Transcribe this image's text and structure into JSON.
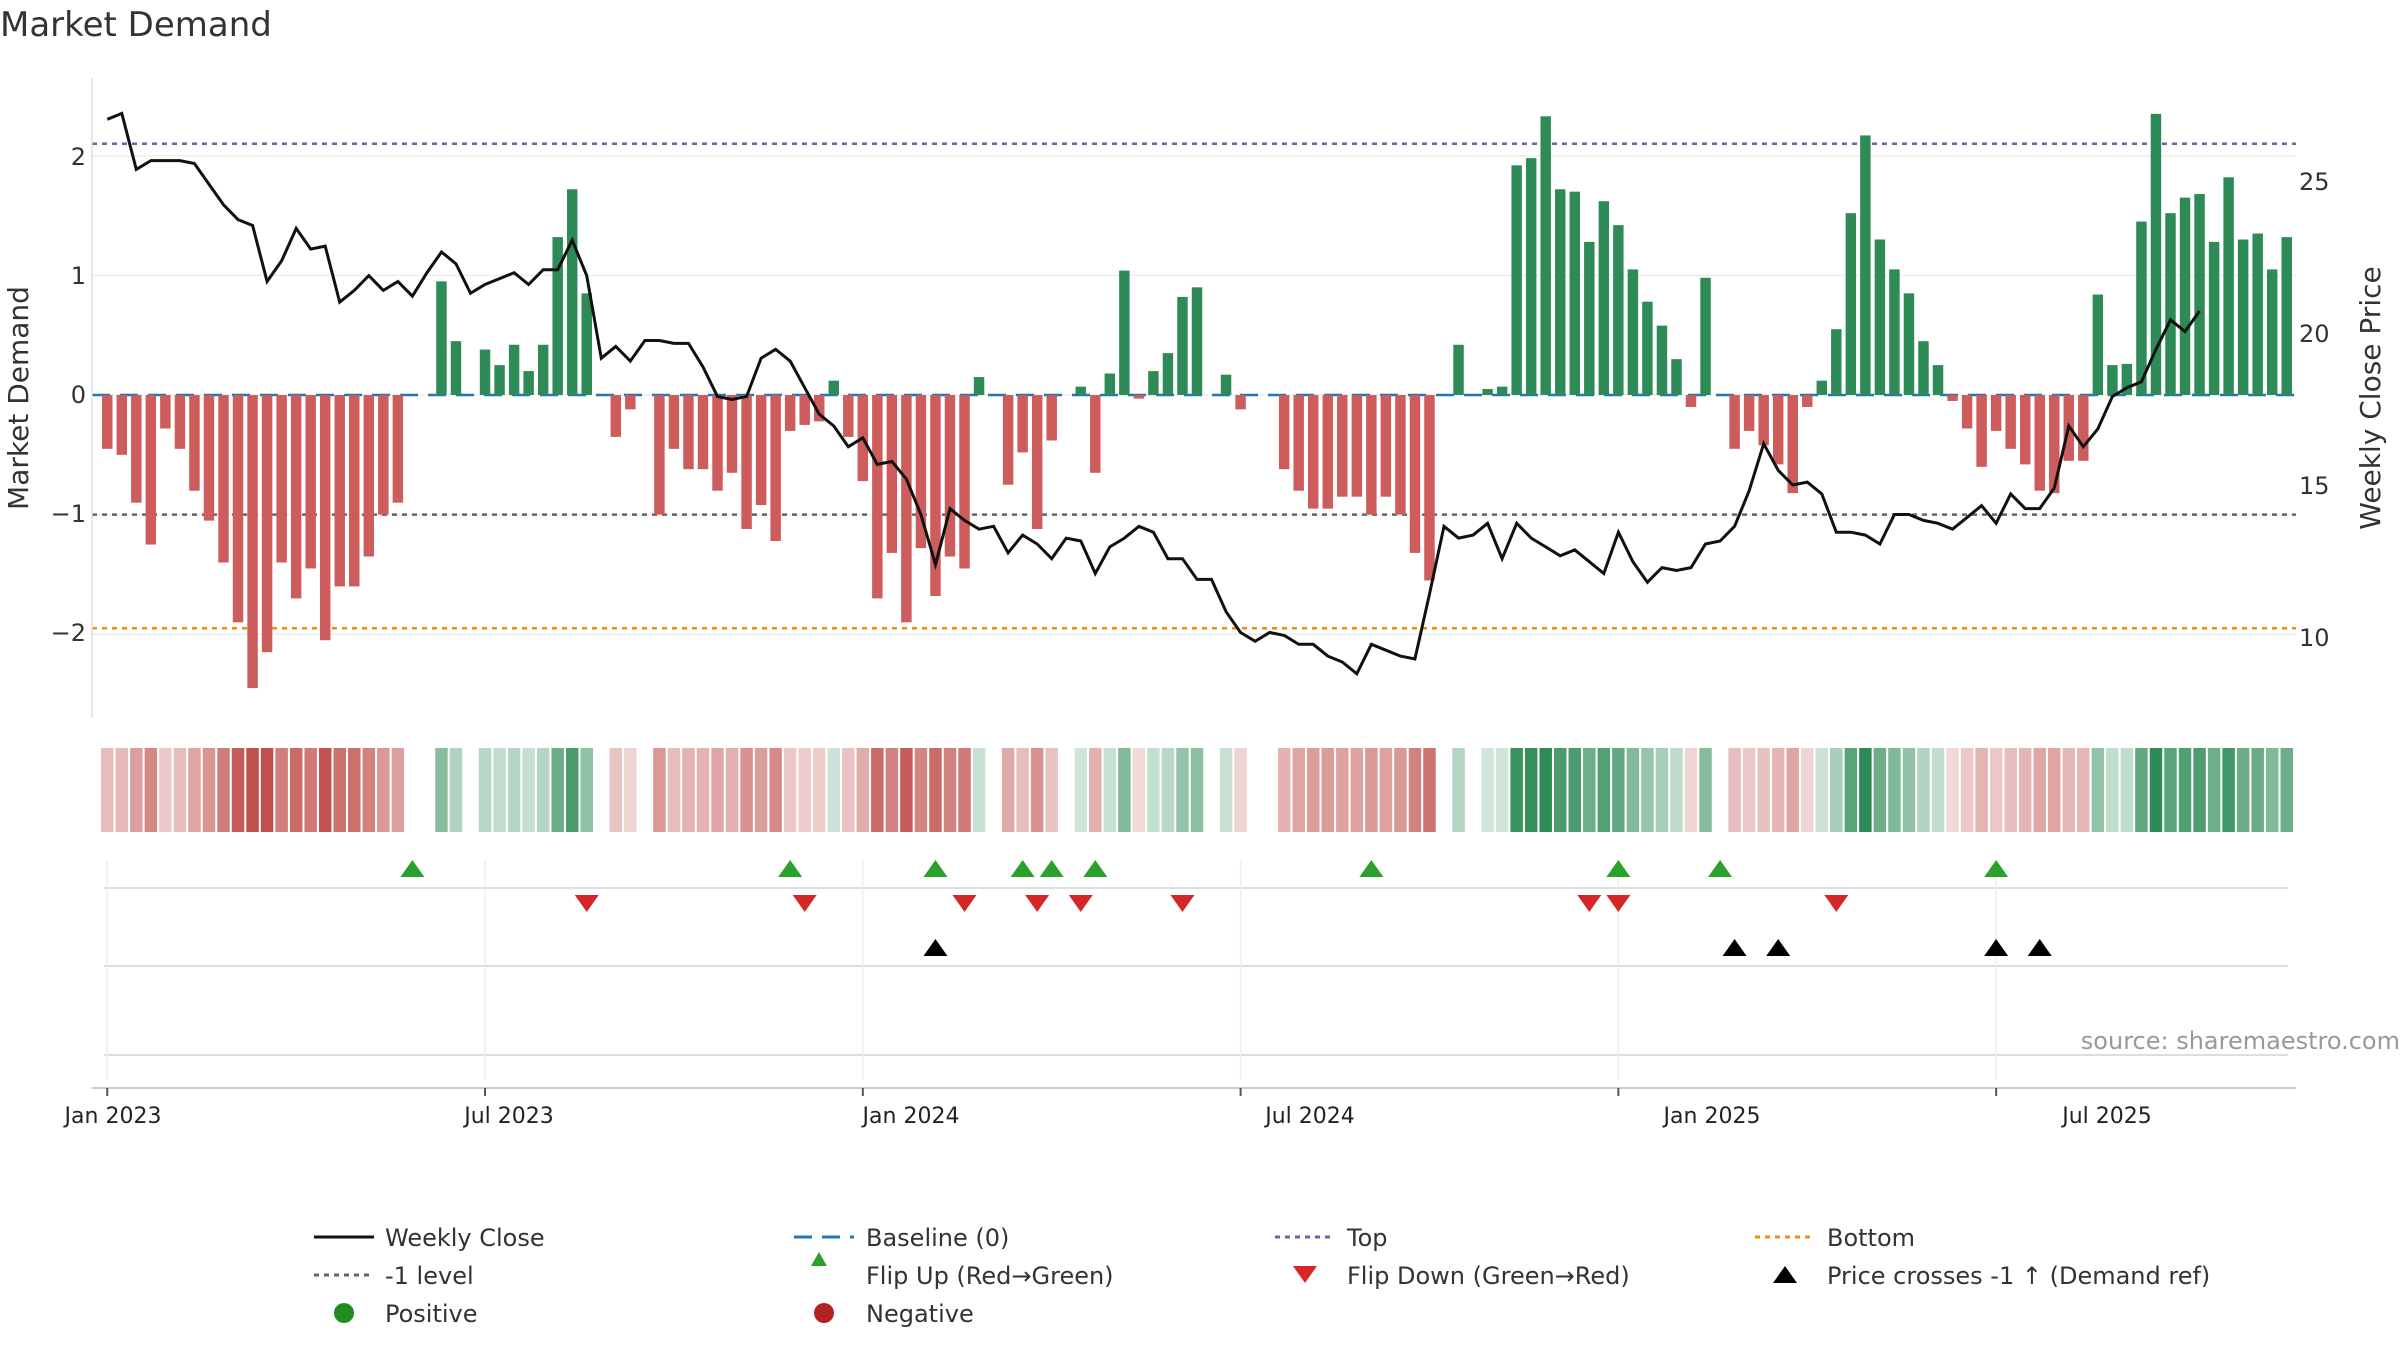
{
  "chart_data": {
    "type": "bar",
    "title": "Market Demand",
    "ylabel_left": "Market Demand",
    "ylabel_right": "Weekly Close Price",
    "ylim_left": [
      -2.7,
      2.65
    ],
    "ylim_right": [
      7.0,
      28.7
    ],
    "left_ticks": [
      2,
      1,
      0,
      -1,
      -2
    ],
    "left_tick_labels": [
      "2",
      "1",
      "0",
      "−1",
      "−2"
    ],
    "right_ticks": [
      25,
      20,
      15,
      10
    ],
    "right_tick_labels": [
      "25",
      "20",
      "15",
      "10"
    ],
    "x_ticks": [
      "Jan 2023",
      "Jul 2023",
      "Jan 2024",
      "Jul 2024",
      "Jan 2025",
      "Jul 2025"
    ],
    "x_tick_weeks": [
      0,
      26,
      52,
      78,
      104,
      130
    ],
    "reference_levels": {
      "top": 2.1,
      "bottom": -1.95,
      "minus_one": -1.0,
      "baseline": 0
    },
    "source_text": "source: sharemaestro.com",
    "demand": [
      -0.45,
      -0.5,
      -0.9,
      -1.25,
      -0.28,
      -0.45,
      -0.8,
      -1.05,
      -1.4,
      -1.9,
      -2.45,
      -2.15,
      -1.4,
      -1.7,
      -1.45,
      -2.05,
      -1.6,
      -1.6,
      -1.35,
      -1.0,
      -0.9,
      0,
      0,
      0.95,
      0.45,
      0,
      0.38,
      0.25,
      0.42,
      0.2,
      0.42,
      1.32,
      1.72,
      0.85,
      0,
      -0.35,
      -0.12,
      0,
      -1.0,
      -0.45,
      -0.62,
      -0.62,
      -0.8,
      -0.65,
      -1.12,
      -0.92,
      -1.22,
      -0.3,
      -0.25,
      -0.22,
      0.12,
      -0.35,
      -0.72,
      -1.7,
      -1.32,
      -1.9,
      -1.28,
      -1.68,
      -1.35,
      -1.45,
      0.15,
      0,
      -0.75,
      -0.48,
      -1.12,
      -0.38,
      0,
      0.07,
      -0.65,
      0.18,
      1.04,
      -0.03,
      0.2,
      0.35,
      0.82,
      0.9,
      0,
      0.17,
      -0.12,
      0,
      0,
      -0.62,
      -0.8,
      -0.95,
      -0.95,
      -0.85,
      -0.85,
      -1.0,
      -0.85,
      -1.0,
      -1.32,
      -1.55,
      0,
      0.42,
      0,
      0.05,
      0.07,
      1.92,
      1.98,
      2.33,
      1.72,
      1.7,
      1.28,
      1.62,
      1.42,
      1.05,
      0.78,
      0.58,
      0.3,
      -0.1,
      0.98,
      0,
      -0.45,
      -0.3,
      -0.42,
      -0.58,
      -0.82,
      -0.1,
      0.12,
      0.55,
      1.52,
      2.17,
      1.3,
      1.05,
      0.85,
      0.45,
      0.25,
      -0.05,
      -0.28,
      -0.6,
      -0.3,
      -0.45,
      -0.58,
      -0.8,
      -0.82,
      -0.55,
      -0.55,
      0.84,
      0.25,
      0.26,
      1.45,
      2.35,
      1.52,
      1.65,
      1.68,
      1.28,
      1.82,
      1.3,
      1.35,
      1.05,
      1.32
    ],
    "close": [
      27.3,
      27.5,
      25.6,
      25.9,
      25.9,
      25.9,
      25.8,
      25.1,
      24.4,
      23.9,
      23.7,
      21.8,
      22.5,
      23.6,
      22.9,
      23.0,
      21.1,
      21.5,
      22.0,
      21.5,
      21.8,
      21.3,
      22.1,
      22.8,
      22.4,
      21.4,
      21.7,
      21.9,
      22.1,
      21.7,
      22.2,
      22.2,
      23.2,
      22.0,
      19.2,
      19.6,
      19.1,
      19.8,
      19.8,
      19.7,
      19.7,
      18.9,
      17.9,
      17.8,
      17.9,
      19.2,
      19.5,
      19.1,
      18.2,
      17.3,
      16.9,
      16.2,
      16.5,
      15.6,
      15.7,
      15.1,
      13.9,
      12.2,
      14.1,
      13.7,
      13.4,
      13.5,
      12.6,
      13.2,
      12.9,
      12.4,
      13.1,
      13.0,
      11.9,
      12.8,
      13.1,
      13.5,
      13.3,
      12.4,
      12.4,
      11.7,
      11.7,
      10.6,
      9.9,
      9.6,
      9.9,
      9.8,
      9.5,
      9.5,
      9.1,
      8.9,
      8.5,
      9.5,
      9.3,
      9.1,
      9.0,
      11.2,
      13.5,
      13.1,
      13.2,
      13.6,
      12.4,
      13.6,
      13.1,
      12.8,
      12.5,
      12.7,
      12.3,
      11.9,
      13.3,
      12.3,
      11.6,
      12.1,
      12.0,
      12.1,
      12.9,
      13.0,
      13.5,
      14.7,
      16.3,
      15.4,
      14.9,
      15.0,
      14.6,
      13.3,
      13.3,
      13.2,
      12.9,
      13.9,
      13.9,
      13.7,
      13.6,
      13.4,
      13.8,
      14.2,
      13.6,
      14.6,
      14.1,
      14.1,
      14.8,
      16.9,
      16.2,
      16.8,
      17.9,
      18.2,
      18.4,
      19.5,
      20.5,
      20.1,
      20.8
    ]
  },
  "strip": {
    "flip_up_weeks": [
      21,
      47,
      57,
      63,
      65,
      68,
      87,
      104,
      111,
      130
    ],
    "flip_down_weeks": [
      33,
      48,
      59,
      64,
      67,
      74,
      102,
      104,
      119
    ],
    "price_cross_weeks": [
      57,
      112,
      115,
      130,
      133
    ]
  },
  "legend": {
    "items": [
      {
        "label": "Weekly Close"
      },
      {
        "label": "Baseline (0)"
      },
      {
        "label": "Top"
      },
      {
        "label": "Bottom"
      },
      {
        "label": "-1 level"
      },
      {
        "label": "Flip Up (Red→Green)"
      },
      {
        "label": "Flip Down (Green→Red)"
      },
      {
        "label": "Price crosses -1 ↑ (Demand ref)"
      },
      {
        "label": "Positive"
      },
      {
        "label": "Negative"
      }
    ]
  },
  "colors": {
    "positive": "#2e8b57",
    "negative": "#cd5c5c",
    "close_line": "#111111",
    "top": "#6666aa",
    "bottom": "#e8900c",
    "minus_one": "#666666",
    "baseline": "#1f77b4",
    "flip_up": "#2ca02c",
    "flip_down": "#d62728",
    "cross": "#000000"
  }
}
